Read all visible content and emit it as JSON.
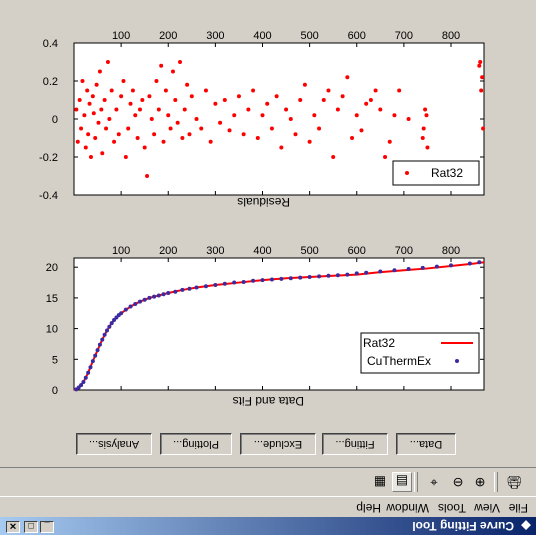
{
  "window": {
    "title": "Curve Fitting Tool",
    "controls": [
      "_",
      "□",
      "✕"
    ]
  },
  "menu": [
    "File",
    "View",
    "Tools",
    "Window",
    "Help"
  ],
  "toolbar": {
    "buttons": [
      {
        "name": "print-icon",
        "glyph": "🖨"
      },
      {
        "name": "zoom-in-icon",
        "glyph": "⊕"
      },
      {
        "name": "zoom-out-icon",
        "glyph": "⊖"
      },
      {
        "name": "data-cursor-icon",
        "glyph": "⌖"
      },
      {
        "name": "legend-toggle-icon",
        "glyph": "▤"
      },
      {
        "name": "grid-toggle-icon",
        "glyph": "▦"
      }
    ]
  },
  "actions": [
    "Data...",
    "Fitting...",
    "Exclude...",
    "Plotting...",
    "Analysis..."
  ],
  "colors": {
    "data": "#3b2aa0",
    "fit": "#ff0000",
    "residual": "#ff0000"
  },
  "chart_data": [
    {
      "type": "scatter",
      "title": "",
      "xlabel": "Data and Fits",
      "ylabel": "",
      "xlim": [
        0,
        870
      ],
      "ylim": [
        0,
        21.5
      ],
      "xticks": [
        100,
        200,
        300,
        400,
        500,
        600,
        700,
        800
      ],
      "yticks": [
        0,
        5,
        10,
        15,
        20
      ],
      "legend": {
        "position": "top-right",
        "entries": [
          "CuThermEx",
          "Rat32"
        ]
      },
      "series": [
        {
          "name": "CuThermEx",
          "kind": "points",
          "x": [
            5,
            10,
            15,
            20,
            25,
            30,
            35,
            40,
            45,
            50,
            55,
            60,
            65,
            70,
            75,
            80,
            85,
            90,
            95,
            100,
            110,
            120,
            130,
            140,
            150,
            160,
            170,
            180,
            190,
            200,
            215,
            230,
            245,
            260,
            280,
            300,
            320,
            340,
            360,
            380,
            400,
            420,
            440,
            460,
            480,
            500,
            520,
            540,
            560,
            580,
            600,
            620,
            650,
            680,
            710,
            740,
            770,
            800,
            840,
            860
          ],
          "y": [
            0.1,
            0.4,
            0.8,
            1.3,
            2.0,
            2.8,
            3.7,
            4.7,
            5.6,
            6.5,
            7.4,
            8.2,
            9.0,
            9.7,
            10.3,
            10.9,
            11.4,
            11.8,
            12.2,
            12.5,
            13.1,
            13.6,
            14.0,
            14.4,
            14.7,
            15.0,
            15.2,
            15.4,
            15.6,
            15.8,
            16.0,
            16.3,
            16.5,
            16.7,
            16.9,
            17.1,
            17.3,
            17.5,
            17.6,
            17.8,
            17.9,
            18.0,
            18.1,
            18.2,
            18.3,
            18.4,
            18.5,
            18.6,
            18.7,
            18.8,
            19.0,
            19.1,
            19.3,
            19.5,
            19.7,
            19.9,
            20.1,
            20.3,
            20.6,
            20.8
          ]
        },
        {
          "name": "Rat32",
          "kind": "line",
          "x": [
            0,
            10,
            20,
            30,
            40,
            50,
            60,
            70,
            80,
            90,
            100,
            120,
            140,
            160,
            180,
            200,
            230,
            260,
            300,
            350,
            400,
            450,
            500,
            550,
            600,
            650,
            700,
            750,
            800,
            850,
            870
          ],
          "y": [
            0,
            0.4,
            1.3,
            2.8,
            4.7,
            6.5,
            8.2,
            9.7,
            10.9,
            11.8,
            12.5,
            13.6,
            14.4,
            15.0,
            15.4,
            15.8,
            16.3,
            16.7,
            17.1,
            17.5,
            17.9,
            18.2,
            18.4,
            18.6,
            18.8,
            19.2,
            19.5,
            19.8,
            20.2,
            20.6,
            20.8
          ]
        }
      ]
    },
    {
      "type": "scatter",
      "title": "",
      "xlabel": "Residuals",
      "ylabel": "",
      "xlim": [
        0,
        870
      ],
      "ylim": [
        -0.4,
        0.4
      ],
      "xticks": [
        100,
        200,
        300,
        400,
        500,
        600,
        700,
        800
      ],
      "yticks": [
        0.4,
        0.2,
        0,
        -0.2,
        -0.4
      ],
      "legend": {
        "position": "top-right",
        "entries": [
          "Rat32"
        ]
      },
      "series": [
        {
          "name": "Rat32",
          "x": [
            5,
            8,
            12,
            15,
            18,
            22,
            25,
            28,
            30,
            33,
            36,
            40,
            42,
            45,
            48,
            52,
            55,
            58,
            60,
            65,
            68,
            72,
            75,
            80,
            85,
            90,
            95,
            100,
            105,
            110,
            115,
            120,
            125,
            130,
            135,
            140,
            145,
            150,
            155,
            160,
            165,
            170,
            175,
            180,
            185,
            190,
            195,
            200,
            205,
            210,
            215,
            220,
            225,
            230,
            235,
            240,
            245,
            250,
            260,
            270,
            280,
            290,
            300,
            310,
            320,
            330,
            340,
            350,
            360,
            370,
            380,
            390,
            400,
            410,
            420,
            430,
            440,
            450,
            460,
            470,
            480,
            490,
            500,
            510,
            520,
            530,
            540,
            550,
            560,
            570,
            580,
            590,
            600,
            610,
            620,
            630,
            640,
            650,
            660,
            670,
            680,
            690,
            700,
            710,
            740,
            742,
            745,
            748,
            750,
            860,
            862,
            864,
            866,
            868
          ],
          "y": [
            0.05,
            -0.12,
            0.1,
            -0.05,
            0.2,
            0.02,
            -0.15,
            0.15,
            -0.08,
            0.08,
            -0.2,
            0.12,
            0.03,
            -0.1,
            0.18,
            -0.02,
            0.25,
            0.05,
            -0.18,
            0.1,
            -0.05,
            0.3,
            0.0,
            0.15,
            -0.12,
            0.05,
            -0.08,
            0.12,
            0.2,
            -0.2,
            -0.05,
            0.08,
            0.15,
            0.02,
            -0.1,
            0.05,
            0.1,
            -0.15,
            -0.3,
            0.12,
            0.0,
            -0.08,
            0.2,
            0.05,
            0.28,
            -0.12,
            0.15,
            0.02,
            -0.05,
            0.25,
            0.1,
            -0.02,
            0.3,
            -0.1,
            0.05,
            0.18,
            -0.08,
            0.12,
            0.0,
            -0.05,
            0.15,
            -0.12,
            0.08,
            -0.02,
            0.1,
            -0.06,
            0.02,
            0.12,
            -0.08,
            0.05,
            0.15,
            -0.1,
            0.02,
            0.08,
            -0.05,
            0.12,
            -0.15,
            0.05,
            0.0,
            -0.08,
            0.1,
            0.18,
            -0.12,
            0.02,
            -0.05,
            0.1,
            0.15,
            -0.2,
            0.05,
            0.12,
            0.22,
            -0.1,
            0.02,
            -0.06,
            0.08,
            0.1,
            0.15,
            0.05,
            -0.2,
            -0.12,
            0.02,
            0.15,
            -0.3,
            0.0,
            -0.1,
            -0.05,
            0.05,
            0.02,
            -0.15,
            0.28,
            0.3,
            0.15,
            0.22,
            -0.05
          ]
        }
      ]
    }
  ]
}
